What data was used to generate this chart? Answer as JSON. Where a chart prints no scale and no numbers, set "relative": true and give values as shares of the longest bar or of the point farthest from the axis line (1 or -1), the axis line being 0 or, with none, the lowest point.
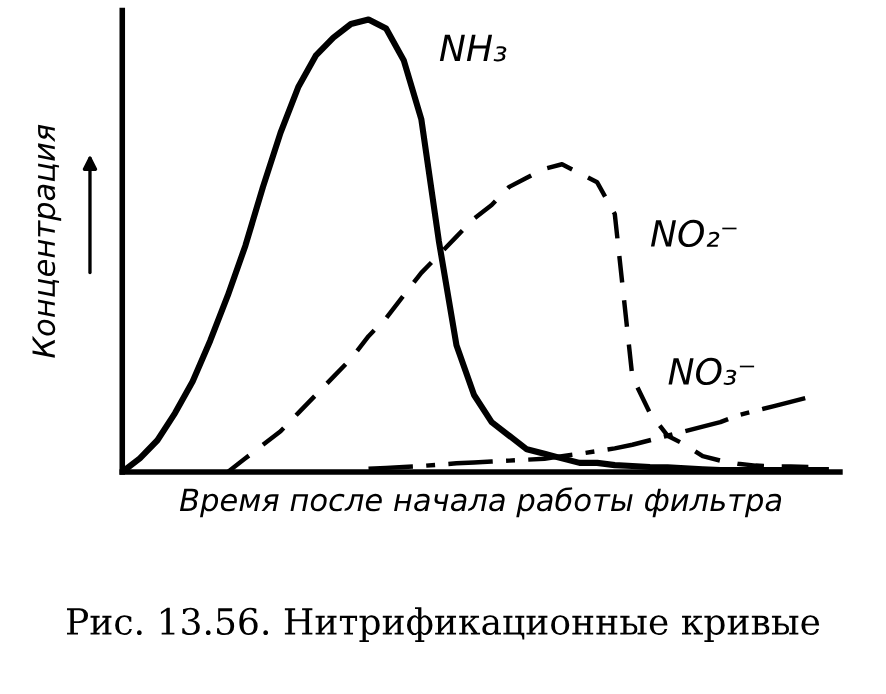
{
  "chart_data": {
    "type": "line",
    "relative": true,
    "xlabel": "Время после начала работы фильтра",
    "ylabel": "Концентрация",
    "annotations": [
      "Рис. 13.56. Нитрификационные кривые"
    ],
    "categories": [
      null,
      null,
      null,
      null,
      null,
      null,
      null,
      null,
      null,
      null,
      null,
      null,
      null,
      null,
      null,
      null,
      null,
      null,
      null,
      null,
      null,
      null,
      null,
      null,
      null,
      null,
      null,
      null,
      null,
      null,
      null,
      null,
      null,
      null,
      null,
      null,
      null,
      null,
      null,
      null,
      null
    ],
    "series": [
      {
        "name": "NH₃",
        "color": "#000000",
        "line_style": "solid",
        "values": [
          0,
          0.03,
          0.07,
          0.13,
          0.2,
          0.29,
          0.39,
          0.5,
          0.63,
          0.75,
          0.85,
          0.92,
          0.96,
          0.99,
          1.0,
          0.98,
          0.91,
          0.78,
          0.51,
          0.28,
          0.17,
          0.11,
          0.08,
          0.05,
          0.04,
          0.03,
          0.02,
          0.02,
          0.015,
          0.013,
          0.011,
          0.01,
          0.008,
          0.006,
          0.004,
          0.004,
          0.004,
          0.004,
          0.004,
          0.004,
          0.004
        ]
      },
      {
        "name": "NO₂⁻",
        "color": "#000000",
        "line_style": "dashed",
        "values": [
          null,
          null,
          null,
          null,
          null,
          null,
          0,
          0.03,
          0.06,
          0.09,
          0.13,
          0.17,
          0.21,
          0.25,
          0.3,
          0.34,
          0.39,
          0.44,
          0.48,
          0.52,
          0.56,
          0.59,
          0.63,
          0.65,
          0.67,
          0.68,
          0.66,
          0.64,
          0.57,
          0.21,
          0.13,
          0.08,
          0.06,
          0.035,
          0.025,
          0.018,
          0.014,
          0.012,
          0.012,
          0.011,
          0.011
        ]
      },
      {
        "name": "NO₃⁻",
        "color": "#000000",
        "line_style": "dashdot",
        "values": [
          null,
          null,
          null,
          null,
          null,
          null,
          null,
          null,
          null,
          null,
          null,
          null,
          null,
          null,
          0.007,
          0.009,
          0.011,
          0.013,
          0.016,
          0.019,
          0.021,
          0.023,
          0.025,
          0.027,
          0.029,
          0.035,
          0.04,
          0.046,
          0.052,
          0.06,
          0.07,
          0.08,
          0.09,
          0.1,
          0.11,
          0.125,
          0.135,
          0.145,
          0.155,
          0.165,
          null
        ]
      }
    ]
  }
}
